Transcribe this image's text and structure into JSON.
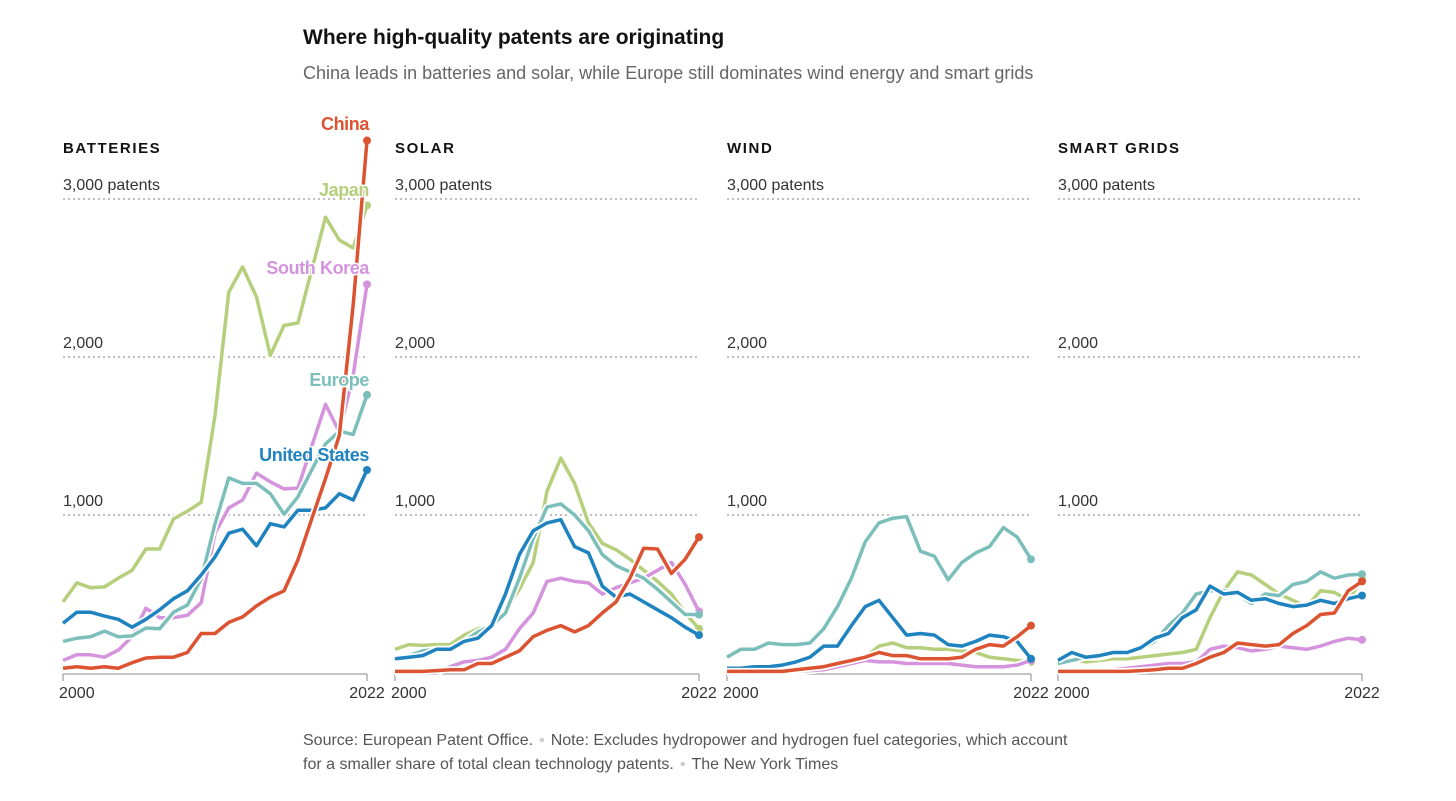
{
  "title": "Where high-quality patents are originating",
  "subtitle": "China leads in batteries and solar, while Europe still dominates wind energy and smart grids",
  "footer": {
    "source": "Source: European Patent Office.",
    "note_part1": "Note: Excludes hydropower and hydrogen fuel categories, which account",
    "note_part2": "for a smaller share of total clean technology patents.",
    "credit": "The New York Times"
  },
  "chart_data": {
    "type": "line",
    "x": [
      2000,
      2001,
      2002,
      2003,
      2004,
      2005,
      2006,
      2007,
      2008,
      2009,
      2010,
      2011,
      2012,
      2013,
      2014,
      2015,
      2016,
      2017,
      2018,
      2019,
      2020,
      2021,
      2022
    ],
    "x_tick_labels": [
      "2000",
      "2022"
    ],
    "y_ticks": [
      {
        "value": 1000,
        "label": "1,000"
      },
      {
        "value": 2000,
        "label": "2,000"
      },
      {
        "value": 3000,
        "label": "3,000 patents"
      }
    ],
    "ylim": [
      0,
      3400
    ],
    "grid": true,
    "colors": {
      "China": "#dc5331",
      "Japan": "#b6cf7c",
      "South Korea": "#d493dc",
      "Europe": "#7cbfba",
      "United States": "#1f83c0"
    },
    "series_order": [
      "Japan",
      "South Korea",
      "Europe",
      "United States",
      "China"
    ],
    "panels": [
      {
        "title": "BATTERIES",
        "labeled": true,
        "series": {
          "Japan": [
            450,
            570,
            540,
            545,
            600,
            650,
            785,
            785,
            975,
            1025,
            1080,
            1630,
            2410,
            2570,
            2380,
            2010,
            2200,
            2215,
            2550,
            2885,
            2740,
            2690,
            2960
          ],
          "South Korea": [
            80,
            115,
            115,
            100,
            145,
            230,
            410,
            350,
            350,
            365,
            445,
            885,
            1045,
            1095,
            1265,
            1210,
            1165,
            1170,
            1435,
            1700,
            1525,
            1885,
            2460
          ],
          "Europe": [
            200,
            220,
            230,
            265,
            230,
            235,
            285,
            280,
            385,
            430,
            595,
            945,
            1235,
            1200,
            1200,
            1135,
            1005,
            1115,
            1285,
            1450,
            1530,
            1510,
            1760
          ],
          "United States": [
            315,
            385,
            385,
            360,
            340,
            290,
            340,
            400,
            470,
            520,
            620,
            735,
            885,
            910,
            805,
            945,
            925,
            1030,
            1030,
            1045,
            1135,
            1095,
            1285
          ],
          "China": [
            30,
            40,
            30,
            40,
            30,
            65,
            95,
            100,
            100,
            130,
            250,
            250,
            320,
            355,
            425,
            480,
            520,
            715,
            975,
            1230,
            1505,
            2330,
            3370
          ]
        }
      },
      {
        "title": "SOLAR",
        "labeled": false,
        "series": {
          "Japan": [
            150,
            180,
            175,
            180,
            180,
            240,
            280,
            300,
            400,
            530,
            700,
            1150,
            1360,
            1200,
            950,
            820,
            780,
            720,
            650,
            580,
            500,
            380,
            280
          ],
          "South Korea": [
            0,
            0,
            0,
            0,
            40,
            70,
            80,
            100,
            150,
            280,
            380,
            580,
            600,
            580,
            570,
            500,
            540,
            570,
            600,
            650,
            700,
            560,
            390
          ],
          "Europe": [
            80,
            110,
            140,
            150,
            150,
            200,
            260,
            300,
            380,
            600,
            850,
            1050,
            1070,
            1000,
            900,
            750,
            680,
            640,
            600,
            530,
            450,
            370,
            370
          ],
          "United States": [
            90,
            100,
            110,
            150,
            150,
            200,
            220,
            300,
            500,
            750,
            900,
            950,
            970,
            800,
            760,
            550,
            480,
            500,
            450,
            400,
            350,
            290,
            240
          ],
          "China": [
            10,
            10,
            10,
            15,
            20,
            20,
            60,
            60,
            100,
            140,
            230,
            270,
            300,
            260,
            300,
            380,
            450,
            600,
            790,
            785,
            630,
            720,
            860
          ]
        }
      },
      {
        "title": "WIND",
        "labeled": false,
        "series": {
          "Japan": [
            10,
            10,
            10,
            10,
            10,
            10,
            20,
            30,
            40,
            60,
            100,
            170,
            190,
            160,
            160,
            150,
            150,
            140,
            130,
            100,
            90,
            80,
            70
          ],
          "South Korea": [
            0,
            0,
            0,
            0,
            5,
            10,
            15,
            20,
            40,
            60,
            80,
            70,
            70,
            60,
            60,
            60,
            60,
            50,
            40,
            40,
            40,
            50,
            80
          ],
          "Europe": [
            100,
            150,
            150,
            190,
            180,
            180,
            190,
            280,
            420,
            600,
            830,
            950,
            980,
            990,
            770,
            740,
            590,
            700,
            760,
            800,
            920,
            860,
            720
          ],
          "United States": [
            30,
            30,
            40,
            40,
            50,
            70,
            100,
            170,
            170,
            300,
            420,
            460,
            350,
            240,
            250,
            240,
            180,
            170,
            200,
            240,
            230,
            200,
            90
          ],
          "China": [
            10,
            10,
            10,
            10,
            10,
            20,
            30,
            40,
            60,
            80,
            100,
            130,
            110,
            110,
            90,
            90,
            90,
            100,
            150,
            180,
            170,
            230,
            300
          ]
        }
      },
      {
        "title": "SMART GRIDS",
        "labeled": false,
        "series": {
          "Japan": [
            50,
            90,
            70,
            80,
            90,
            90,
            100,
            110,
            120,
            130,
            150,
            350,
            520,
            640,
            620,
            560,
            500,
            460,
            420,
            520,
            510,
            460,
            590
          ],
          "South Korea": [
            5,
            10,
            10,
            15,
            20,
            30,
            40,
            50,
            60,
            60,
            70,
            150,
            170,
            160,
            140,
            150,
            170,
            160,
            150,
            170,
            200,
            220,
            210
          ],
          "Europe": [
            60,
            80,
            100,
            100,
            120,
            120,
            150,
            200,
            300,
            380,
            500,
            520,
            520,
            500,
            440,
            500,
            490,
            560,
            580,
            640,
            600,
            620,
            625
          ],
          "United States": [
            80,
            130,
            100,
            110,
            130,
            130,
            160,
            220,
            250,
            350,
            400,
            550,
            500,
            510,
            460,
            470,
            440,
            420,
            430,
            460,
            440,
            470,
            490
          ],
          "China": [
            10,
            10,
            10,
            10,
            10,
            10,
            15,
            20,
            30,
            30,
            60,
            100,
            130,
            190,
            180,
            170,
            180,
            250,
            300,
            370,
            380,
            520,
            580
          ]
        }
      }
    ],
    "series_labels": [
      "China",
      "Japan",
      "South Korea",
      "Europe",
      "United States"
    ]
  }
}
